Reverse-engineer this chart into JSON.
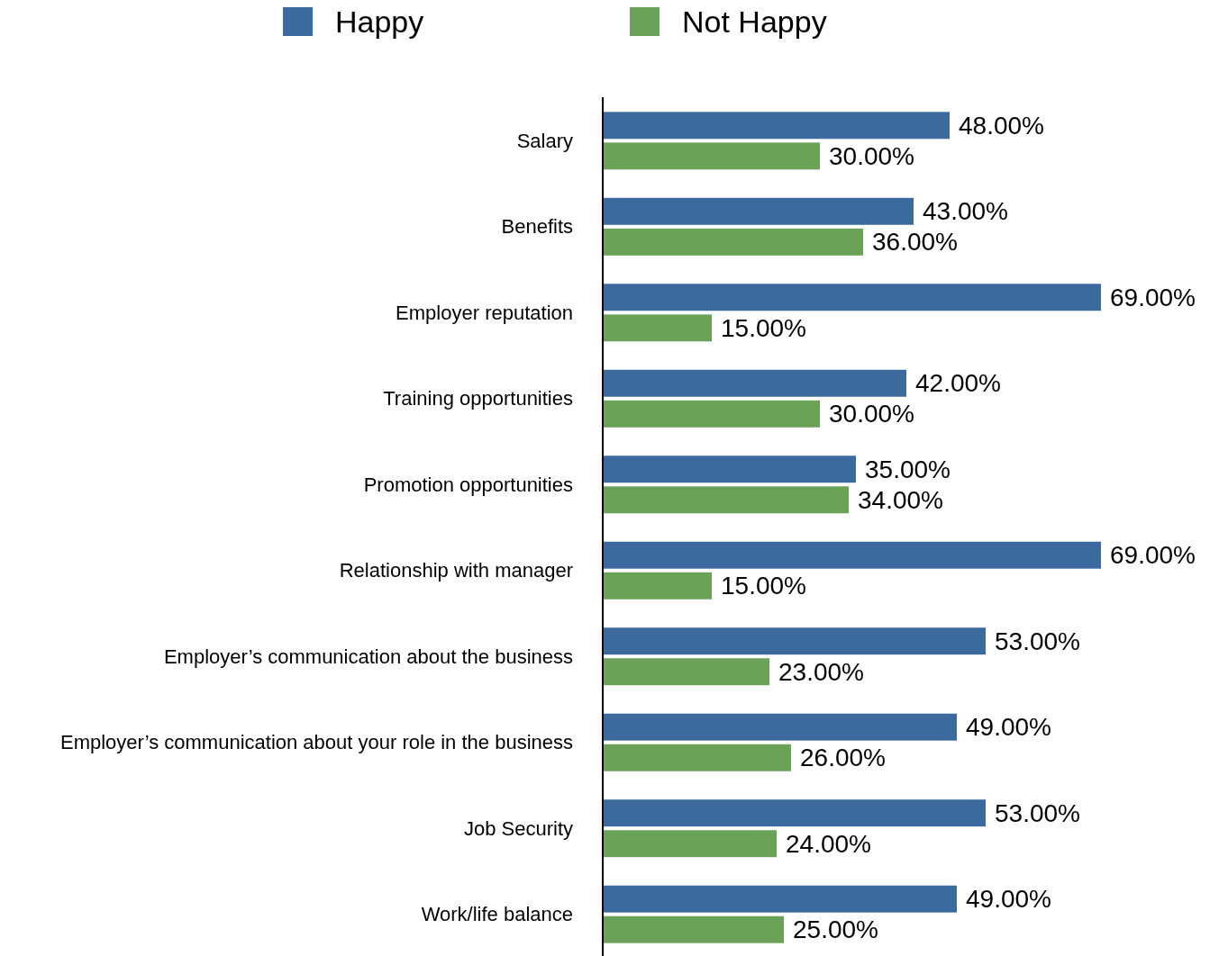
{
  "chart_data": {
    "type": "bar",
    "orientation": "horizontal",
    "legend": "top",
    "categories": [
      "Salary",
      "Benefits",
      "Employer reputation",
      "Training opportunities",
      "Promotion opportunities",
      "Relationship with manager",
      "Employer’s communication about the business",
      "Employer’s communication about your role in the business",
      "Job Security",
      "Work/life balance"
    ],
    "series": [
      {
        "name": "Happy",
        "color": "#3d6a9e",
        "values": [
          48,
          43,
          69,
          42,
          35,
          69,
          53,
          49,
          53,
          49
        ],
        "value_labels": [
          "48.00%",
          "43.00%",
          "69.00%",
          "42.00%",
          "35.00%",
          "69.00%",
          "53.00%",
          "49.00%",
          "53.00%",
          "49.00%"
        ]
      },
      {
        "name": "Not Happy",
        "color": "#6aa257",
        "values": [
          30,
          36,
          15,
          30,
          34,
          15,
          23,
          26,
          24,
          25
        ],
        "value_labels": [
          "30.00%",
          "36.00%",
          "15.00%",
          "30.00%",
          "34.00%",
          "15.00%",
          "23.00%",
          "26.00%",
          "24.00%",
          "25.00%"
        ]
      }
    ]
  }
}
